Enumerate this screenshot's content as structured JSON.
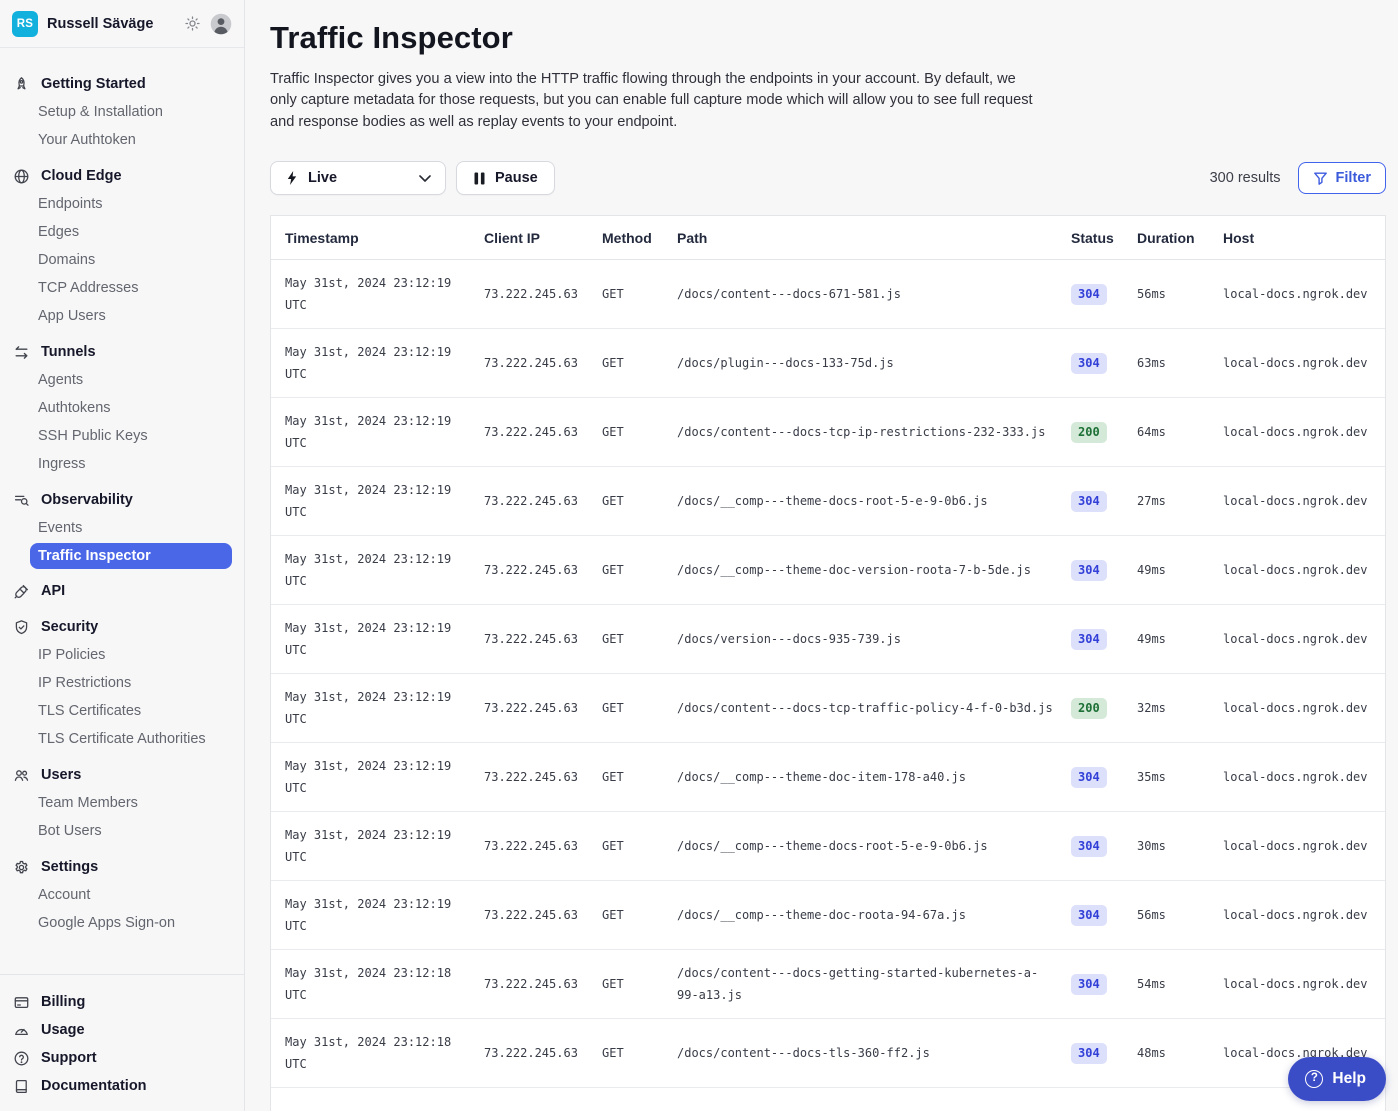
{
  "user": {
    "initials": "RS",
    "name": "Russell Säväge"
  },
  "header_icons": [
    "sun-icon",
    "user-avatar-icon"
  ],
  "page": {
    "title": "Traffic Inspector",
    "description": "Traffic Inspector gives you a view into the HTTP traffic flowing through the endpoints in your account. By default, we only capture metadata for those requests, but you can enable full capture mode which will allow you to see full request and response bodies as well as replay events to your endpoint."
  },
  "controls": {
    "live_label": "Live",
    "pause_label": "Pause",
    "results_count": "300 results",
    "filter_label": "Filter"
  },
  "sidebar": {
    "sections": [
      {
        "icon": "rocket-icon",
        "label": "Getting Started",
        "items": [
          {
            "label": "Setup & Installation"
          },
          {
            "label": "Your Authtoken"
          }
        ]
      },
      {
        "icon": "globe-icon",
        "label": "Cloud Edge",
        "items": [
          {
            "label": "Endpoints"
          },
          {
            "label": "Edges"
          },
          {
            "label": "Domains"
          },
          {
            "label": "TCP Addresses"
          },
          {
            "label": "App Users"
          }
        ]
      },
      {
        "icon": "tunnels-icon",
        "label": "Tunnels",
        "items": [
          {
            "label": "Agents"
          },
          {
            "label": "Authtokens"
          },
          {
            "label": "SSH Public Keys"
          },
          {
            "label": "Ingress"
          }
        ]
      },
      {
        "icon": "observability-icon",
        "label": "Observability",
        "items": [
          {
            "label": "Events"
          },
          {
            "label": "Traffic Inspector",
            "selected": true
          }
        ]
      },
      {
        "icon": "api-icon",
        "label": "API",
        "items": []
      },
      {
        "icon": "shield-icon",
        "label": "Security",
        "items": [
          {
            "label": "IP Policies"
          },
          {
            "label": "IP Restrictions"
          },
          {
            "label": "TLS Certificates"
          },
          {
            "label": "TLS Certificate Authorities"
          }
        ]
      },
      {
        "icon": "users-icon",
        "label": "Users",
        "items": [
          {
            "label": "Team Members"
          },
          {
            "label": "Bot Users"
          }
        ]
      },
      {
        "icon": "gear-icon",
        "label": "Settings",
        "items": [
          {
            "label": "Account"
          },
          {
            "label": "Google Apps Sign-on"
          }
        ]
      }
    ],
    "footer_items": [
      {
        "icon": "billing-icon",
        "label": "Billing"
      },
      {
        "icon": "usage-icon",
        "label": "Usage"
      },
      {
        "icon": "support-icon",
        "label": "Support"
      },
      {
        "icon": "documentation-icon",
        "label": "Documentation"
      }
    ]
  },
  "table": {
    "columns": [
      "Timestamp",
      "Client IP",
      "Method",
      "Path",
      "Status",
      "Duration",
      "Host"
    ],
    "rows": [
      {
        "timestamp": "May 31st, 2024 23:12:19 UTC",
        "client_ip": "73.222.245.63",
        "method": "GET",
        "path": "/docs/content---docs-671-581.js",
        "status": "304",
        "duration": "56ms",
        "host": "local-docs.ngrok.dev"
      },
      {
        "timestamp": "May 31st, 2024 23:12:19 UTC",
        "client_ip": "73.222.245.63",
        "method": "GET",
        "path": "/docs/plugin---docs-133-75d.js",
        "status": "304",
        "duration": "63ms",
        "host": "local-docs.ngrok.dev"
      },
      {
        "timestamp": "May 31st, 2024 23:12:19 UTC",
        "client_ip": "73.222.245.63",
        "method": "GET",
        "path": "/docs/content---docs-tcp-ip-restrictions-232-333.js",
        "status": "200",
        "duration": "64ms",
        "host": "local-docs.ngrok.dev"
      },
      {
        "timestamp": "May 31st, 2024 23:12:19 UTC",
        "client_ip": "73.222.245.63",
        "method": "GET",
        "path": "/docs/__comp---theme-docs-root-5-e-9-0b6.js",
        "status": "304",
        "duration": "27ms",
        "host": "local-docs.ngrok.dev"
      },
      {
        "timestamp": "May 31st, 2024 23:12:19 UTC",
        "client_ip": "73.222.245.63",
        "method": "GET",
        "path": "/docs/__comp---theme-doc-version-roota-7-b-5de.js",
        "status": "304",
        "duration": "49ms",
        "host": "local-docs.ngrok.dev"
      },
      {
        "timestamp": "May 31st, 2024 23:12:19 UTC",
        "client_ip": "73.222.245.63",
        "method": "GET",
        "path": "/docs/version---docs-935-739.js",
        "status": "304",
        "duration": "49ms",
        "host": "local-docs.ngrok.dev"
      },
      {
        "timestamp": "May 31st, 2024 23:12:19 UTC",
        "client_ip": "73.222.245.63",
        "method": "GET",
        "path": "/docs/content---docs-tcp-traffic-policy-4-f-0-b3d.js",
        "status": "200",
        "duration": "32ms",
        "host": "local-docs.ngrok.dev"
      },
      {
        "timestamp": "May 31st, 2024 23:12:19 UTC",
        "client_ip": "73.222.245.63",
        "method": "GET",
        "path": "/docs/__comp---theme-doc-item-178-a40.js",
        "status": "304",
        "duration": "35ms",
        "host": "local-docs.ngrok.dev"
      },
      {
        "timestamp": "May 31st, 2024 23:12:19 UTC",
        "client_ip": "73.222.245.63",
        "method": "GET",
        "path": "/docs/__comp---theme-docs-root-5-e-9-0b6.js",
        "status": "304",
        "duration": "30ms",
        "host": "local-docs.ngrok.dev"
      },
      {
        "timestamp": "May 31st, 2024 23:12:19 UTC",
        "client_ip": "73.222.245.63",
        "method": "GET",
        "path": "/docs/__comp---theme-doc-roota-94-67a.js",
        "status": "304",
        "duration": "56ms",
        "host": "local-docs.ngrok.dev"
      },
      {
        "timestamp": "May 31st, 2024 23:12:18 UTC",
        "client_ip": "73.222.245.63",
        "method": "GET",
        "path": "/docs/content---docs-getting-started-kubernetes-a-99-a13.js",
        "status": "304",
        "duration": "54ms",
        "host": "local-docs.ngrok.dev"
      },
      {
        "timestamp": "May 31st, 2024 23:12:18 UTC",
        "client_ip": "73.222.245.63",
        "method": "GET",
        "path": "/docs/content---docs-tls-360-ff2.js",
        "status": "304",
        "duration": "48ms",
        "host": "local-docs.ngrok.dev"
      }
    ]
  },
  "help": {
    "label": "Help"
  },
  "colors": {
    "accent_blue": "#4263eb",
    "selected_item_bg": "#4a67e8",
    "avatar_bg": "#12b1dd",
    "status_304_bg": "#dce0fa",
    "status_304_text": "#3340d8",
    "status_200_bg": "#d5e9d8",
    "status_200_text": "#1d7036",
    "help_button_bg": "#3b4cc7"
  }
}
